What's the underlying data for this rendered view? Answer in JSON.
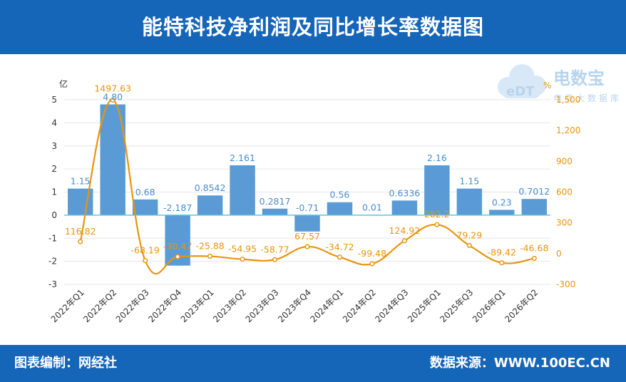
{
  "header": {
    "title": "能特科技净利润及同比增长率数据图"
  },
  "footer": {
    "credit": "图表编制：网经社",
    "source": "数据来源：WWW.100EC.CN"
  },
  "logo": {
    "name": "电数宝",
    "tagline": "电商大数据库",
    "mark": "eDT"
  },
  "colors": {
    "bar": "#5b9bd5",
    "line": "#e8950c",
    "header": "#1565b8",
    "zero_line": "#5dc8dc"
  },
  "chart_data": {
    "type": "bar+line",
    "categories": [
      "2022年Q1",
      "2022年Q2",
      "2022年Q3",
      "2022年Q4",
      "2023年Q1",
      "2023年Q2",
      "2023年Q3",
      "2023年Q4",
      "2024年Q1",
      "2024年Q2",
      "2024年Q3",
      "2025年Q1",
      "2025年Q3",
      "2026年Q1",
      "2026年Q2"
    ],
    "left_axis": {
      "unit": "亿",
      "ylim": [
        -3,
        5
      ],
      "ticks": [
        -3,
        -2,
        -1,
        0,
        1,
        2,
        3,
        4,
        5
      ]
    },
    "right_axis": {
      "unit": "%",
      "ylim": [
        -300,
        1500
      ],
      "ticks": [
        -300,
        0,
        300,
        600,
        900,
        1200,
        1500
      ],
      "tick_labels": [
        "-300",
        "0",
        "300",
        "600",
        "900",
        "1,200",
        "1,500"
      ]
    },
    "series": [
      {
        "type": "bar",
        "axis": "left",
        "values": [
          1.15,
          4.8,
          0.68,
          -2.187,
          0.8542,
          2.161,
          0.2817,
          -0.71,
          0.56,
          0.01,
          0.6336,
          2.16,
          1.15,
          0.23,
          0.7012
        ],
        "labels": [
          "1.15",
          "4.80",
          "0.68",
          "-2.187",
          "0.8542",
          "2.161",
          "0.2817",
          "-0.71",
          "0.56",
          "0.01",
          "0.6336",
          "2.16",
          "1.15",
          "0.23",
          "0.7012"
        ]
      },
      {
        "type": "line",
        "axis": "right",
        "values": [
          116.82,
          1497.63,
          -68.19,
          -30.47,
          -25.88,
          -54.95,
          -58.77,
          67.57,
          -34.72,
          -99.48,
          124.92,
          282.2,
          79.29,
          -89.42,
          -46.68
        ],
        "labels": [
          "116.82",
          "1497.63",
          "-68.19",
          "-30.47",
          "-25.88",
          "-54.95",
          "-58.77",
          "67.57",
          "-34.72",
          "-99.48",
          "124.92",
          "282.2",
          "79.29",
          "-89.42",
          "-46.68"
        ]
      }
    ],
    "grid": true,
    "legend": "none"
  }
}
